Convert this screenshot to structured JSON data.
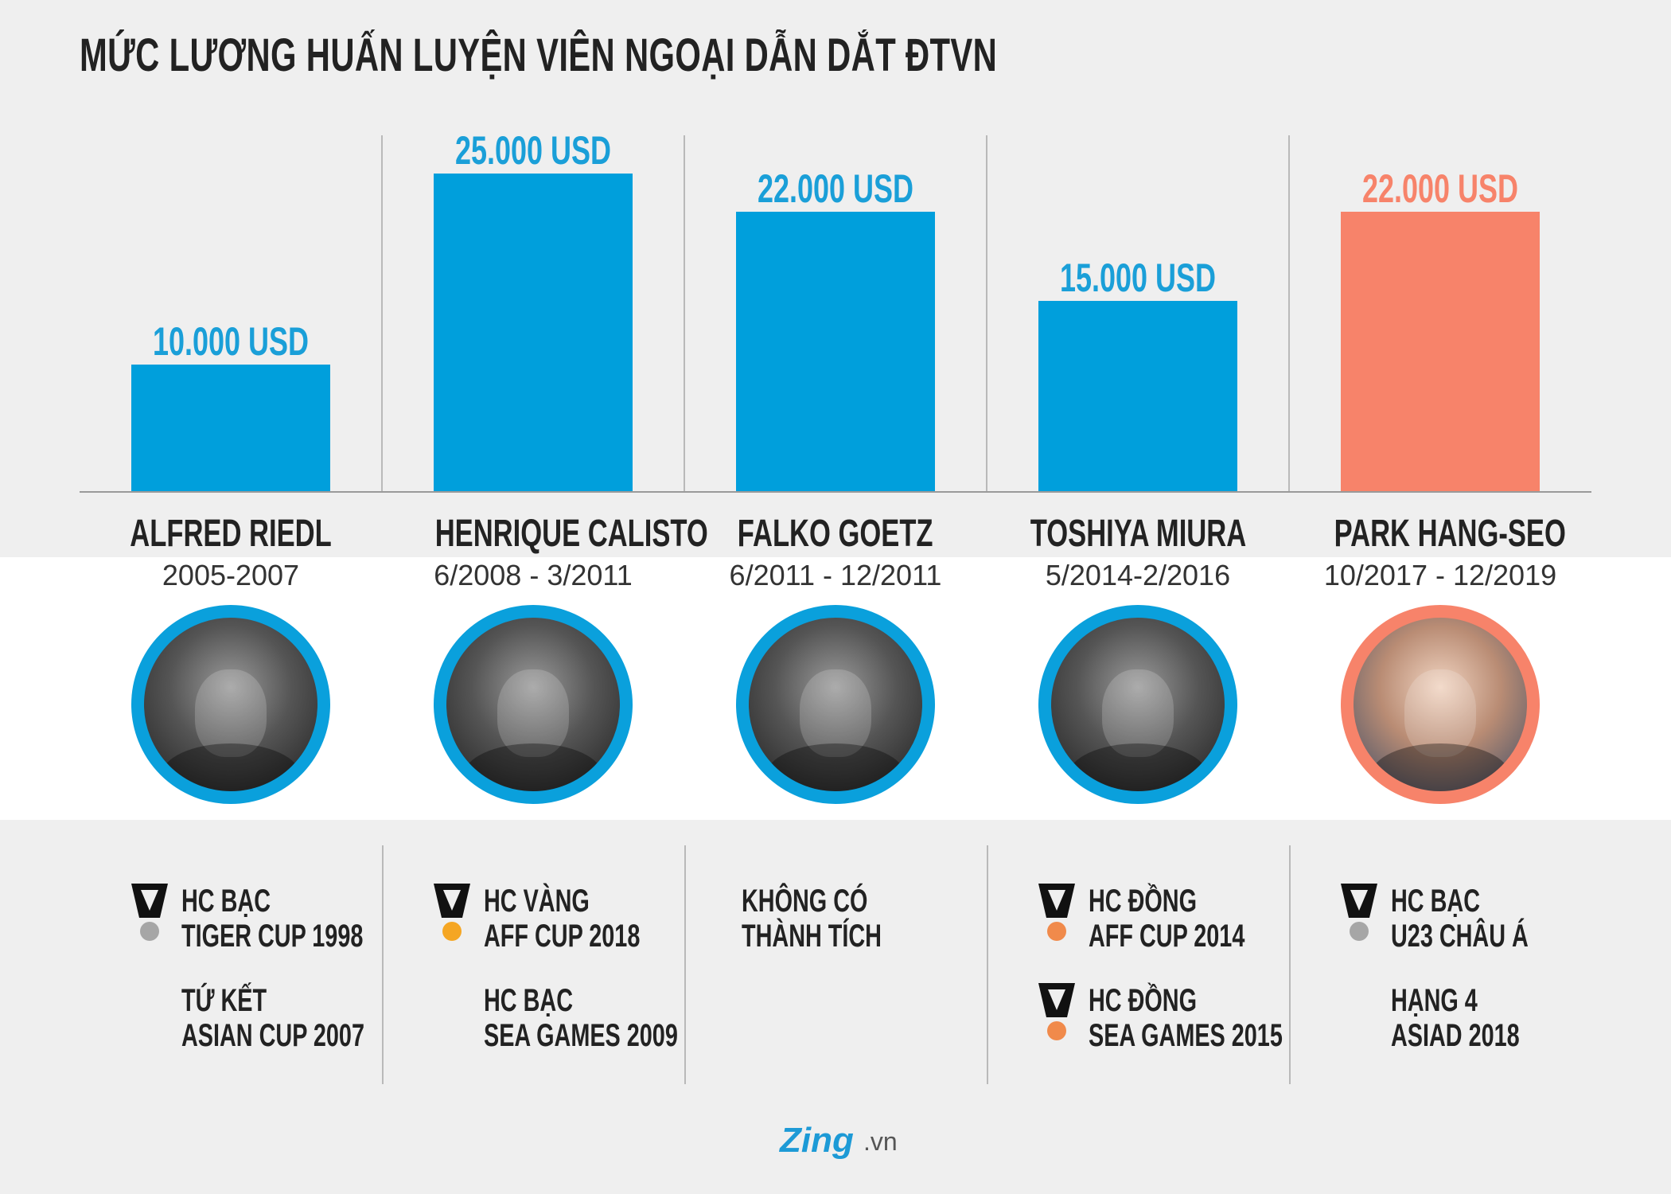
{
  "title": "MỨC LƯƠNG HUẤN LUYỆN VIÊN NGOẠI DẪN DẮT ĐTVN",
  "colors": {
    "bar": "#009fdc",
    "highlight": "#f7836a",
    "label_blue": "#1a9fd8"
  },
  "chart_data": {
    "type": "bar",
    "title": "MỨC LƯƠNG HUẤN LUYỆN VIÊN NGOẠI DẪN DẮT ĐTVN",
    "categories": [
      "ALFRED RIEDL",
      "HENRIQUE CALISTO",
      "FALKO GOETZ",
      "TOSHIYA MIURA",
      "PARK HANG-SEO"
    ],
    "values": [
      10000,
      25000,
      22000,
      15000,
      22000
    ],
    "value_labels": [
      "10.000 USD",
      "25.000 USD",
      "22.000 USD",
      "15.000 USD",
      "22.000 USD"
    ],
    "highlight_index": 4,
    "ylim": [
      0,
      25000
    ]
  },
  "coaches": [
    {
      "name": "ALFRED RIEDL",
      "period": "2005-2007"
    },
    {
      "name": "HENRIQUE CALISTO",
      "period": "6/2008 - 3/2011"
    },
    {
      "name": "FALKO GOETZ",
      "period": "6/2011 - 12/2011"
    },
    {
      "name": "TOSHIYA MIURA",
      "period": "5/2014-2/2016"
    },
    {
      "name": "PARK HANG-SEO",
      "period": "10/2017 - 12/2019"
    }
  ],
  "achievements": [
    [
      {
        "medal": "silver",
        "lines": [
          "HC BẠC",
          "TIGER CUP 1998"
        ]
      },
      {
        "medal": null,
        "lines": [
          "TỨ KẾT",
          "ASIAN CUP 2007"
        ]
      }
    ],
    [
      {
        "medal": "gold",
        "lines": [
          "HC VÀNG",
          "AFF CUP 2018"
        ]
      },
      {
        "medal": null,
        "lines": [
          "HC BẠC",
          "SEA GAMES 2009"
        ]
      }
    ],
    [
      {
        "medal": null,
        "lines": [
          "KHÔNG CÓ",
          "THÀNH TÍCH"
        ]
      }
    ],
    [
      {
        "medal": "bronze",
        "lines": [
          "HC ĐỒNG",
          "AFF CUP 2014"
        ]
      },
      {
        "medal": "bronze",
        "lines": [
          "HC ĐỒNG",
          "SEA GAMES 2015"
        ]
      }
    ],
    [
      {
        "medal": "silver",
        "lines": [
          "HC BẠC",
          "U23 CHÂU Á"
        ]
      },
      {
        "medal": null,
        "lines": [
          "HẠNG 4",
          "ASIAD 2018"
        ]
      }
    ]
  ],
  "medal_colors": {
    "gold": "#f5a623",
    "silver": "#a6a6a6",
    "bronze": "#f08a4b"
  },
  "footer": {
    "brand": "Zing",
    "tld": ".vn"
  }
}
